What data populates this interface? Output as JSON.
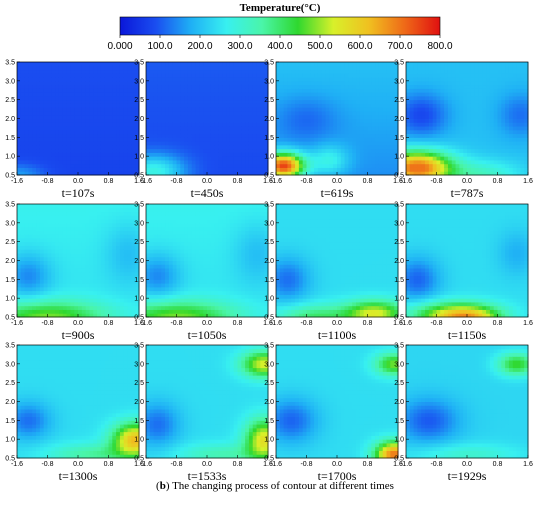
{
  "colorbar": {
    "title": "Temperature(°C)",
    "ticks": [
      "0.000",
      "100.0",
      "200.0",
      "300.0",
      "400.0",
      "500.0",
      "600.0",
      "700.0",
      "800.0"
    ],
    "min": 0,
    "max": 800,
    "colors": [
      "#0a17d9",
      "#1a4df0",
      "#1fb0f5",
      "#38f0f0",
      "#4af5a8",
      "#2fd82f",
      "#d8f02a",
      "#f0c020",
      "#ef6a18",
      "#e01010"
    ]
  },
  "caption": {
    "label": "b",
    "text": " The changing process of contour at different times"
  },
  "chart_data": [
    {
      "type": "heatmap",
      "time": "t=107s",
      "x_ticks": [
        "-1.6",
        "-0.8",
        "0.0",
        "0.8",
        "1.6"
      ],
      "y_ticks": [
        "0.5",
        "1.0",
        "1.5",
        "2.0",
        "2.5",
        "3.0",
        "3.5"
      ],
      "xlim": [
        -1.6,
        1.6
      ],
      "ylim": [
        0.5,
        3.5
      ],
      "pattern": "cold",
      "peak_temp": 200
    },
    {
      "type": "heatmap",
      "time": "t=450s",
      "x_ticks": [
        "-1.6",
        "-0.8",
        "0.0",
        "0.8",
        "1.6"
      ],
      "y_ticks": [
        "0.5",
        "1.0",
        "1.5",
        "2.0",
        "2.5",
        "3.0",
        "3.5"
      ],
      "xlim": [
        -1.6,
        1.6
      ],
      "ylim": [
        0.5,
        3.5
      ],
      "pattern": "corner-warm",
      "peak_temp": 300
    },
    {
      "type": "heatmap",
      "time": "t=619s",
      "x_ticks": [
        "-1.6",
        "-0.8",
        "0.0",
        "0.8",
        "1.6"
      ],
      "y_ticks": [
        "0.5",
        "1.0",
        "1.5",
        "2.0",
        "2.5",
        "3.0",
        "3.5"
      ],
      "xlim": [
        -1.6,
        1.6
      ],
      "ylim": [
        0.5,
        3.5
      ],
      "pattern": "left-hot",
      "peak_temp": 750
    },
    {
      "type": "heatmap",
      "time": "t=787s",
      "x_ticks": [
        "-1.6",
        "-0.8",
        "0.0",
        "0.8",
        "1.6"
      ],
      "y_ticks": [
        "0.5",
        "1.0",
        "1.5",
        "2.0",
        "2.5",
        "3.0",
        "3.5"
      ],
      "xlim": [
        -1.6,
        1.6
      ],
      "ylim": [
        0.5,
        3.5
      ],
      "pattern": "diagonal-hot",
      "peak_temp": 700
    },
    {
      "type": "heatmap",
      "time": "t=900s",
      "x_ticks": [
        "-1.6",
        "-0.8",
        "0.0",
        "0.8",
        "1.6"
      ],
      "y_ticks": [
        "0.5",
        "1.0",
        "1.5",
        "2.0",
        "2.5",
        "3.0",
        "3.5"
      ],
      "xlim": [
        -1.6,
        1.6
      ],
      "ylim": [
        0.5,
        3.5
      ],
      "pattern": "bottom-warm",
      "peak_temp": 500
    },
    {
      "type": "heatmap",
      "time": "t=1050s",
      "x_ticks": [
        "-1.6",
        "-0.8",
        "0.0",
        "0.8",
        "1.6"
      ],
      "y_ticks": [
        "0.5",
        "1.0",
        "1.5",
        "2.0",
        "2.5",
        "3.0",
        "3.5"
      ],
      "xlim": [
        -1.6,
        1.6
      ],
      "ylim": [
        0.5,
        3.5
      ],
      "pattern": "bottom-warm",
      "peak_temp": 520
    },
    {
      "type": "heatmap",
      "time": "t=1100s",
      "x_ticks": [
        "-1.6",
        "-0.8",
        "0.0",
        "0.8",
        "1.6"
      ],
      "y_ticks": [
        "0.5",
        "1.0",
        "1.5",
        "2.0",
        "2.5",
        "3.0",
        "3.5"
      ],
      "xlim": [
        -1.6,
        1.6
      ],
      "ylim": [
        0.5,
        3.5
      ],
      "pattern": "right-bottom-hot",
      "peak_temp": 650
    },
    {
      "type": "heatmap",
      "time": "t=1150s",
      "x_ticks": [
        "-1.6",
        "-0.8",
        "0.0",
        "0.8",
        "1.6"
      ],
      "y_ticks": [
        "0.5",
        "1.0",
        "1.5",
        "2.0",
        "2.5",
        "3.0",
        "3.5"
      ],
      "xlim": [
        -1.6,
        1.6
      ],
      "ylim": [
        0.5,
        3.5
      ],
      "pattern": "bottom-center-hot",
      "peak_temp": 680
    },
    {
      "type": "heatmap",
      "time": "t=1300s",
      "x_ticks": [
        "-1.6",
        "-0.8",
        "0.0",
        "0.8",
        "1.6"
      ],
      "y_ticks": [
        "0.5",
        "1.0",
        "1.5",
        "2.0",
        "2.5",
        "3.0",
        "3.5"
      ],
      "xlim": [
        -1.6,
        1.6
      ],
      "ylim": [
        0.5,
        3.5
      ],
      "pattern": "right-mid-hot",
      "peak_temp": 640
    },
    {
      "type": "heatmap",
      "time": "t=1533s",
      "x_ticks": [
        "-1.6",
        "-0.8",
        "0.0",
        "0.8",
        "1.6"
      ],
      "y_ticks": [
        "0.5",
        "1.0",
        "1.5",
        "2.0",
        "2.5",
        "3.0",
        "3.5"
      ],
      "xlim": [
        -1.6,
        1.6
      ],
      "ylim": [
        0.5,
        3.5
      ],
      "pattern": "right-two-hot",
      "peak_temp": 620
    },
    {
      "type": "heatmap",
      "time": "t=1700s",
      "x_ticks": [
        "-1.6",
        "-0.8",
        "0.0",
        "0.8",
        "1.6"
      ],
      "y_ticks": [
        "0.5",
        "1.0",
        "1.5",
        "2.0",
        "2.5",
        "3.0",
        "3.5"
      ],
      "xlim": [
        -1.6,
        1.6
      ],
      "ylim": [
        0.5,
        3.5
      ],
      "pattern": "right-corner-hot",
      "peak_temp": 720
    },
    {
      "type": "heatmap",
      "time": "t=1929s",
      "x_ticks": [
        "-1.6",
        "-0.8",
        "0.0",
        "0.8",
        "1.6"
      ],
      "y_ticks": [
        "0.5",
        "1.0",
        "1.5",
        "2.0",
        "2.5",
        "3.0",
        "3.5"
      ],
      "xlim": [
        -1.6,
        1.6
      ],
      "ylim": [
        0.5,
        3.5
      ],
      "pattern": "top-right-warm",
      "peak_temp": 500
    }
  ]
}
